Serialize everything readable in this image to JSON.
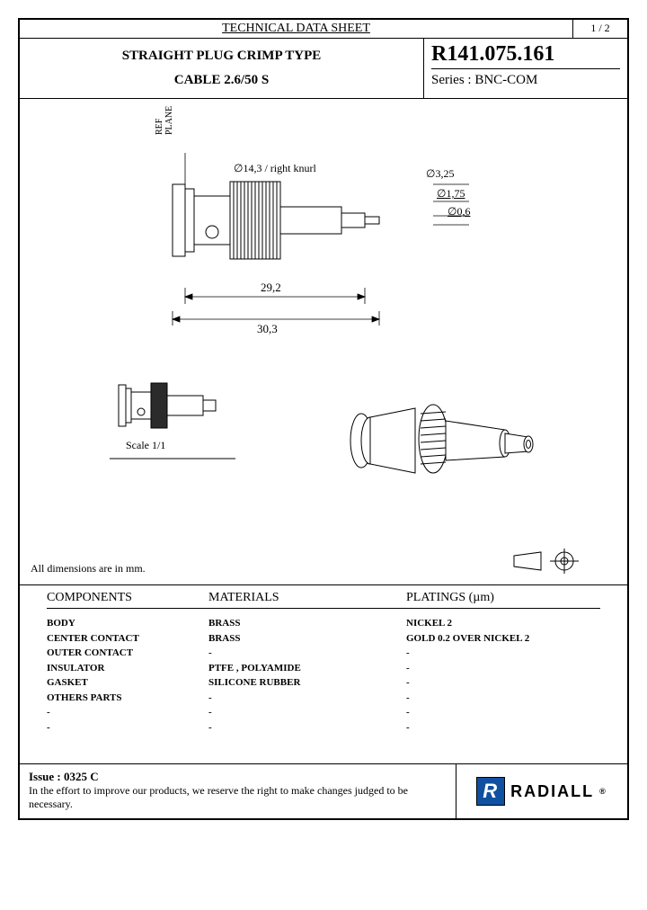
{
  "page": {
    "doc_title": "TECHNICAL DATA SHEET",
    "page_num": "1 / 2",
    "product_title_1": "STRAIGHT PLUG CRIMP TYPE",
    "product_title_2": "CABLE 2.6/50 S",
    "part_number": "R141.075.161",
    "series": "Series : BNC-COM"
  },
  "drawing": {
    "ref_plane": "REF\nPLANE",
    "dim_knurl": "∅14,3 / right knurl",
    "dim_325": "∅3,25",
    "dim_175": "∅1,75",
    "dim_06": "∅0,6",
    "dim_292": "29,2",
    "dim_303": "30,3",
    "scale": "Scale 1/1",
    "dim_note": "All dimensions are in mm.",
    "colors": {
      "line": "#000000",
      "fill_body": "#ffffff",
      "fill_dark": "#2b2b2b"
    }
  },
  "table": {
    "head_components": "COMPONENTS",
    "head_materials": "MATERIALS",
    "head_platings": "PLATINGS (µm)",
    "rows": [
      {
        "c": "BODY",
        "m": "BRASS",
        "p": "NICKEL 2"
      },
      {
        "c": "CENTER CONTACT",
        "m": "BRASS",
        "p": "GOLD 0.2 OVER NICKEL 2"
      },
      {
        "c": "OUTER CONTACT",
        "m": "-",
        "p": "-"
      },
      {
        "c": "INSULATOR",
        "m": "PTFE , POLYAMIDE",
        "p": "-"
      },
      {
        "c": "GASKET",
        "m": "SILICONE RUBBER",
        "p": "-"
      },
      {
        "c": "OTHERS PARTS",
        "m": "-",
        "p": "-"
      },
      {
        "c": "-",
        "m": "-",
        "p": "-"
      },
      {
        "c": "-",
        "m": "-",
        "p": "-"
      }
    ]
  },
  "footer": {
    "issue": "Issue : 0325 C",
    "disclaimer": "In the effort to improve our products, we reserve the right to make changes judged to be necessary.",
    "brand": "RADIALL",
    "reg": "®"
  }
}
